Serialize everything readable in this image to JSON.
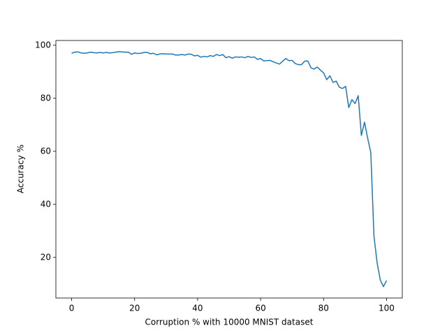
{
  "chart_data": {
    "type": "line",
    "xlabel": "Corruption % with 10000 MNIST dataset",
    "ylabel": "Accuracy %",
    "x": [
      0,
      1,
      2,
      3,
      4,
      5,
      6,
      7,
      8,
      9,
      10,
      11,
      12,
      13,
      14,
      15,
      16,
      17,
      18,
      19,
      20,
      21,
      22,
      23,
      24,
      25,
      26,
      27,
      28,
      29,
      30,
      31,
      32,
      33,
      34,
      35,
      36,
      37,
      38,
      39,
      40,
      41,
      42,
      43,
      44,
      45,
      46,
      47,
      48,
      49,
      50,
      51,
      52,
      53,
      54,
      55,
      56,
      57,
      58,
      59,
      60,
      61,
      62,
      63,
      64,
      65,
      66,
      67,
      68,
      69,
      70,
      71,
      72,
      73,
      74,
      75,
      76,
      77,
      78,
      79,
      80,
      81,
      82,
      83,
      84,
      85,
      86,
      87,
      88,
      89,
      90,
      91,
      92,
      93,
      94,
      95,
      96,
      97,
      98,
      99,
      100
    ],
    "series": [
      {
        "color": "#1f77b4",
        "values": [
          97,
          97.4,
          97.5,
          97.1,
          97,
          97.1,
          97.4,
          97.2,
          97.1,
          97.3,
          97.1,
          97.3,
          97.1,
          97.2,
          97.4,
          97.6,
          97.5,
          97.4,
          97.4,
          96.6,
          97.1,
          96.9,
          97,
          97.3,
          97.3,
          96.8,
          97,
          96.4,
          96.7,
          96.8,
          96.7,
          96.7,
          96.7,
          96.3,
          96.3,
          96.5,
          96.3,
          96.7,
          96.6,
          96,
          96.2,
          95.5,
          95.8,
          95.6,
          96.1,
          95.8,
          96.5,
          96.1,
          96.5,
          95.3,
          95.7,
          95.1,
          95.6,
          95.5,
          95.6,
          95.3,
          95.8,
          95.4,
          95.6,
          94.7,
          95,
          94.1,
          94.2,
          94.3,
          93.8,
          93.3,
          92.9,
          94,
          95,
          94.2,
          94.3,
          93.1,
          92.7,
          92.7,
          94,
          94.1,
          91.5,
          91,
          91.8,
          90.6,
          89.6,
          87,
          88.5,
          86,
          86.5,
          84.2,
          83.7,
          84.5,
          76.5,
          79.5,
          78,
          81,
          66,
          71,
          65,
          59.5,
          28,
          18,
          11.5,
          9,
          11.3
        ]
      }
    ],
    "xlim": [
      -5,
      105
    ],
    "ylim": [
      4.7,
      101.8
    ],
    "xticks": [
      0,
      20,
      40,
      60,
      80,
      100
    ],
    "yticks": [
      20,
      40,
      60,
      80,
      100
    ],
    "grid": false
  }
}
